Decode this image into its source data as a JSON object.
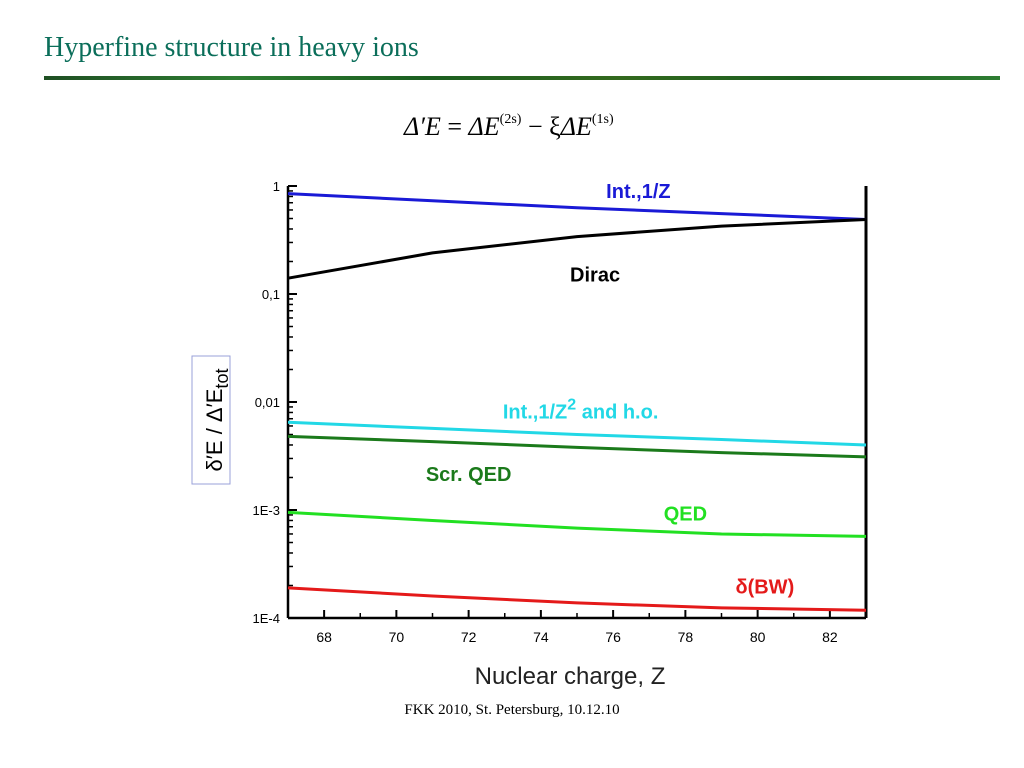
{
  "slide": {
    "title": "Hyperfine structure in heavy ions",
    "footer": "FKK 2010, St. Petersburg, 10.12.10"
  },
  "formula": {
    "lhs": "Δ′E",
    "eq": " = ",
    "term1": "ΔE",
    "sup1": "(2s)",
    "op": " − ξ",
    "term2": "ΔE",
    "sup2": "(1s)"
  },
  "chart_data": {
    "type": "line",
    "xlabel": "Nuclear charge, Z",
    "ylabel": "δ′E / Δ′E",
    "ylabel_sub": "tot",
    "yscale": "log",
    "xlim": [
      67,
      83
    ],
    "ylim": [
      0.0001,
      1
    ],
    "x_ticks": [
      68,
      70,
      72,
      74,
      76,
      78,
      80,
      82
    ],
    "y_ticks": [
      {
        "value": 1,
        "label": "1"
      },
      {
        "value": 0.1,
        "label": "0,1"
      },
      {
        "value": 0.01,
        "label": "0,01"
      },
      {
        "value": 0.001,
        "label": "1E-3"
      },
      {
        "value": 0.0001,
        "label": "1E-4"
      }
    ],
    "legend": "inline labels",
    "series": [
      {
        "name": "Int.,1/Z",
        "color": "#1a1ad6",
        "x": [
          67,
          71,
          75,
          79,
          83
        ],
        "y": [
          0.85,
          0.73,
          0.63,
          0.555,
          0.49
        ]
      },
      {
        "name": "Dirac",
        "color": "#000000",
        "x": [
          67,
          71,
          75,
          79,
          83
        ],
        "y": [
          0.14,
          0.24,
          0.34,
          0.425,
          0.49
        ]
      },
      {
        "name": "Int.,1/Z",
        "name_sup": "2",
        "name_rest": " and h.o.",
        "color": "#22d8e6",
        "x": [
          67,
          71,
          75,
          79,
          83
        ],
        "y": [
          0.0065,
          0.0057,
          0.005,
          0.0045,
          0.004
        ]
      },
      {
        "name": "Scr. QED",
        "color": "#1b7a1b",
        "x": [
          67,
          71,
          75,
          79,
          83
        ],
        "y": [
          0.0048,
          0.0043,
          0.0038,
          0.0034,
          0.0031
        ]
      },
      {
        "name": "QED",
        "color": "#22e022",
        "x": [
          67,
          71,
          75,
          79,
          83
        ],
        "y": [
          0.00095,
          0.0008,
          0.00068,
          0.0006,
          0.00057
        ]
      },
      {
        "name": "δ(BW)",
        "color": "#e41a1a",
        "x": [
          67,
          71,
          75,
          79,
          83
        ],
        "y": [
          0.00019,
          0.00016,
          0.000138,
          0.000124,
          0.000118
        ]
      }
    ]
  }
}
